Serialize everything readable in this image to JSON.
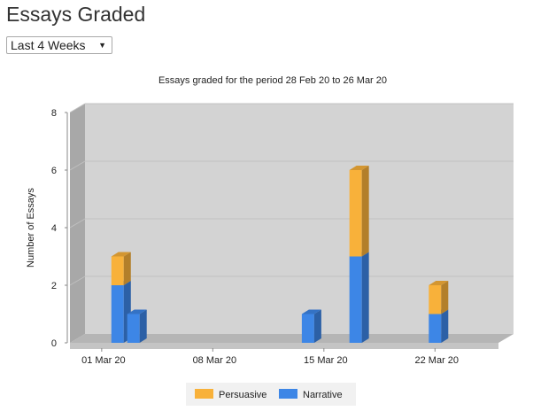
{
  "header": {
    "title": "Essays Graded"
  },
  "filter": {
    "selected": "Last 4 Weeks",
    "icon": "chevron-down-icon"
  },
  "chart_data": {
    "type": "bar",
    "stacked": true,
    "three_d": true,
    "title": "Essays graded for the period 28 Feb 20 to 26 Mar 20",
    "xlabel": "",
    "ylabel": "Number of Essays",
    "x_ticks": [
      "01 Mar 20",
      "08 Mar 20",
      "15 Mar 20",
      "22 Mar 20"
    ],
    "x_range": [
      "28 Feb 20",
      "26 Mar 20"
    ],
    "ylim": [
      0,
      8
    ],
    "y_ticks": [
      0,
      2,
      4,
      6,
      8
    ],
    "grid": true,
    "legend_position": "bottom-center",
    "bars": [
      {
        "date": "02 Mar 20",
        "Narrative": 2,
        "Persuasive": 1
      },
      {
        "date": "03 Mar 20",
        "Narrative": 1,
        "Persuasive": 0
      },
      {
        "date": "14 Mar 20",
        "Narrative": 1,
        "Persuasive": 0
      },
      {
        "date": "17 Mar 20",
        "Narrative": 3,
        "Persuasive": 3
      },
      {
        "date": "22 Mar 20",
        "Narrative": 1,
        "Persuasive": 1
      }
    ],
    "series": [
      {
        "name": "Persuasive",
        "color": "#f8b13a"
      },
      {
        "name": "Narrative",
        "color": "#3d86e6"
      }
    ]
  }
}
